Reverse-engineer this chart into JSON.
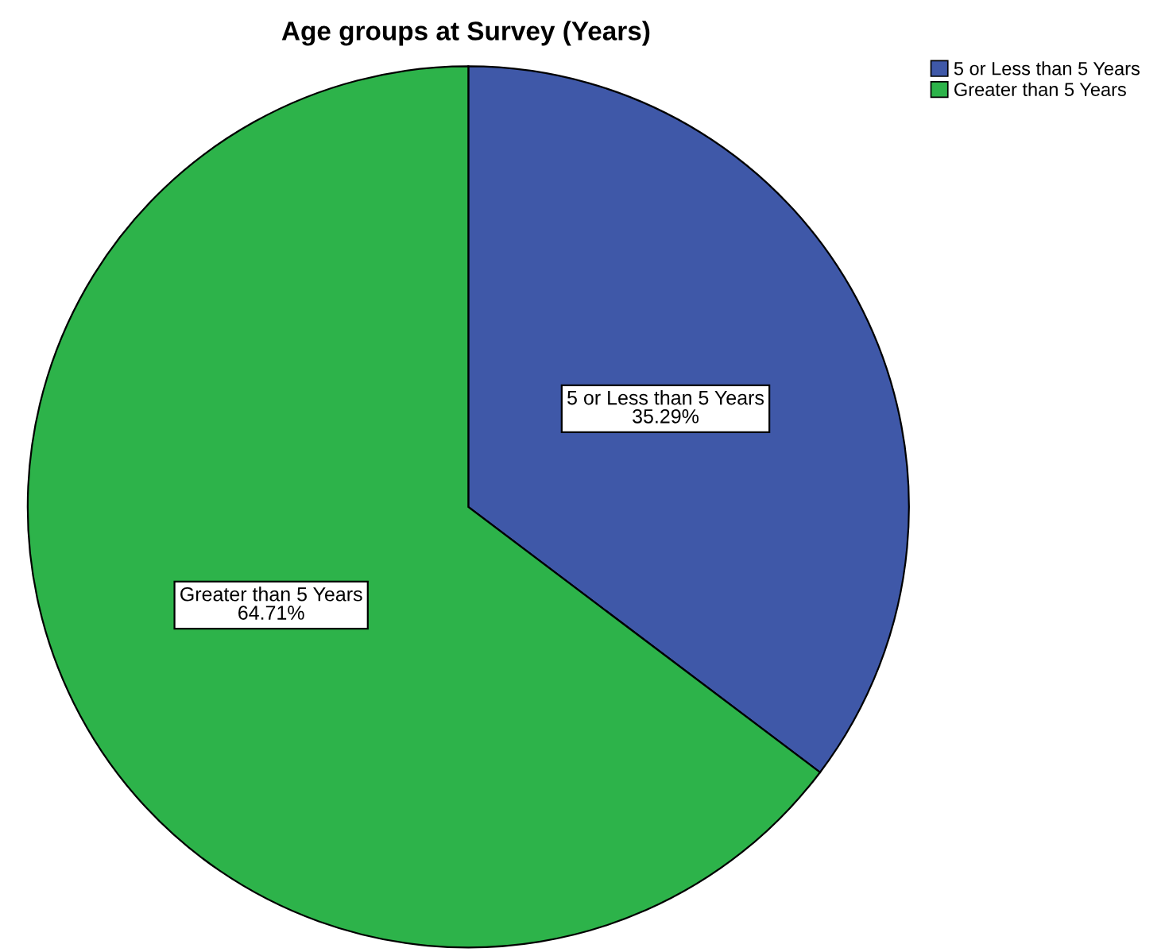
{
  "chart_data": {
    "type": "pie",
    "title": "Age groups at Survey (Years)",
    "categories": [
      "5 or Less than 5 Years",
      "Greater than 5 Years"
    ],
    "values": [
      35.29,
      64.71
    ],
    "value_labels": [
      "35.29%",
      "64.71%"
    ],
    "colors": [
      "#3f58a8",
      "#2db34a"
    ],
    "legend": "top right"
  }
}
